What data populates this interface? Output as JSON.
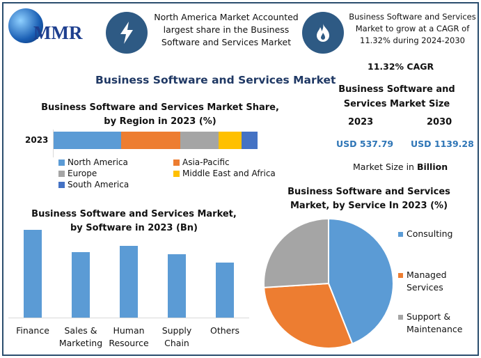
{
  "logo": {
    "text": "MMR"
  },
  "header": {
    "icon1": "lightning-icon",
    "text1": [
      "North America Market Accounted",
      "largest share in the Business",
      "Software and Services Market"
    ],
    "icon2": "flame-icon",
    "text2": [
      "Business Software and Services",
      "Market to grow at a CAGR of",
      "11.32% during 2024-2030"
    ]
  },
  "main_title": "Business Software and Services Market",
  "size_panel": {
    "cagr": "11.32% CAGR",
    "title": [
      "Business Software and",
      "Services Market Size"
    ],
    "years": [
      "2023",
      "2030"
    ],
    "values": [
      "USD 537.79",
      "USD 1139.28"
    ],
    "unit_prefix": "Market Size in ",
    "unit_bold": "Billion"
  },
  "colors": {
    "blue": "#5b9bd5",
    "orange": "#ed7d31",
    "gray": "#a5a5a5",
    "yellow": "#ffc000",
    "darkblue": "#4472c4",
    "frame": "#2a4d6e"
  },
  "chart_data": [
    {
      "type": "bar",
      "orientation": "horizontal",
      "stacked": true,
      "title": [
        "Business Software and Services Market Share,",
        "by Region in 2023 (%)"
      ],
      "categories": [
        "2023"
      ],
      "series": [
        {
          "name": "North America",
          "values": [
            33
          ],
          "color": "#5b9bd5"
        },
        {
          "name": "Asia-Pacific",
          "values": [
            29
          ],
          "color": "#ed7d31"
        },
        {
          "name": "Europe",
          "values": [
            19
          ],
          "color": "#a5a5a5"
        },
        {
          "name": "Middle East and Africa",
          "values": [
            11
          ],
          "color": "#ffc000"
        },
        {
          "name": "South America",
          "values": [
            8
          ],
          "color": "#4472c4"
        }
      ],
      "legend": "bottom"
    },
    {
      "type": "bar",
      "title": [
        "Business Software and Services Market,",
        "by Software in 2023 (Bn)"
      ],
      "categories": [
        [
          "Finance"
        ],
        [
          "Sales &",
          "Marketing"
        ],
        [
          "Human",
          "Resource"
        ],
        [
          "Supply",
          "Chain"
        ],
        [
          "Others"
        ]
      ],
      "values": [
        100,
        75,
        82,
        72,
        63
      ],
      "color": "#5b9bd5",
      "grid": false
    },
    {
      "type": "pie",
      "title": [
        "Business Software and Services",
        "Market, by Service In 2023 (%)"
      ],
      "labels": [
        [
          "Consulting"
        ],
        [
          "Managed",
          "Services"
        ],
        [
          "Support &",
          "Maintenance"
        ]
      ],
      "values": [
        44,
        30,
        26
      ],
      "colors": [
        "#5b9bd5",
        "#ed7d31",
        "#a5a5a5"
      ],
      "legend": "right"
    }
  ]
}
